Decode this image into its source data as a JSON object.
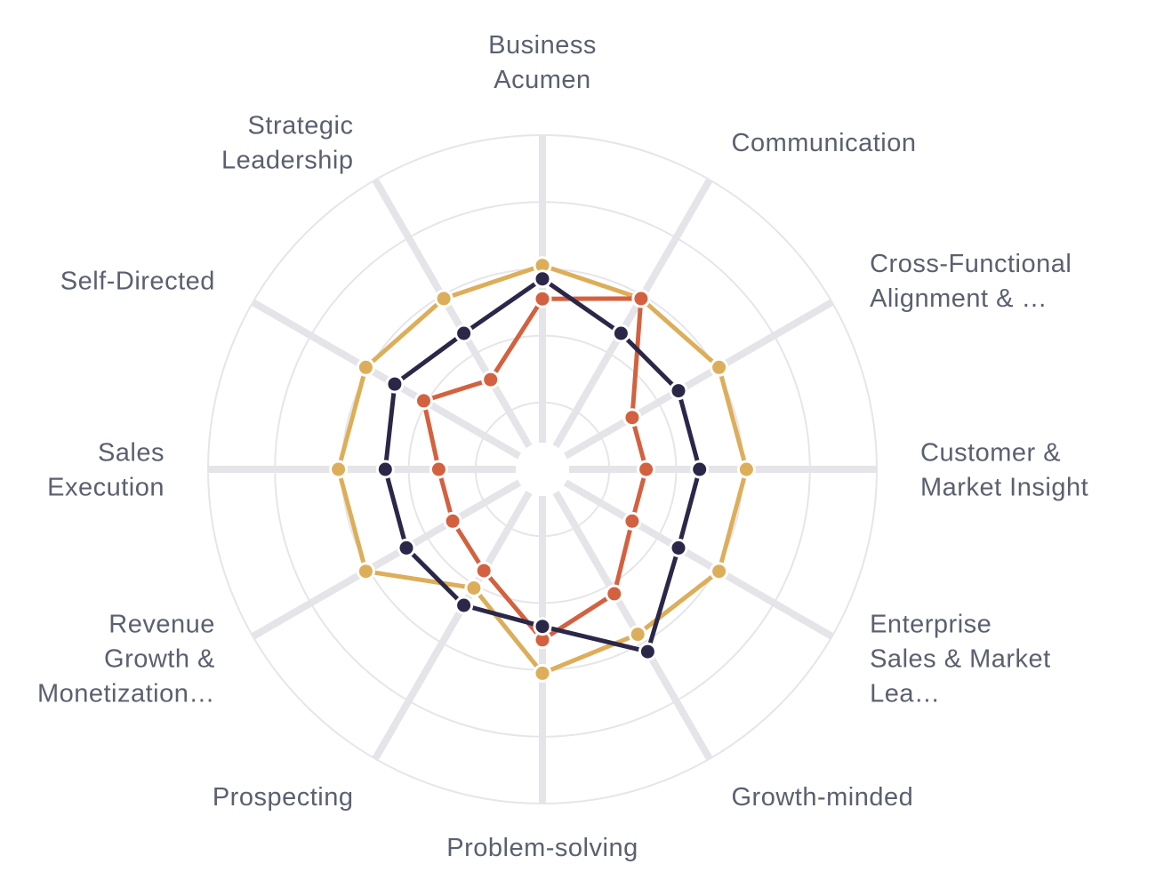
{
  "chart_data": {
    "type": "radar",
    "title": "",
    "categories": [
      [
        "Business",
        "Acumen"
      ],
      [
        "Communication"
      ],
      [
        "Cross-Functional",
        "Alignment & …"
      ],
      [
        "Customer &",
        "Market Insight"
      ],
      [
        "Enterprise",
        "Sales & Market",
        "Lea…"
      ],
      [
        "Growth-minded"
      ],
      [
        "Problem-solving"
      ],
      [
        "Prospecting"
      ],
      [
        "Revenue",
        "Growth &",
        "Monetization…"
      ],
      [
        "Sales",
        "Execution"
      ],
      [
        "Self-Directed"
      ],
      [
        "Strategic",
        "Leadership"
      ]
    ],
    "rlim": [
      0,
      5
    ],
    "rings": 5,
    "series": [
      {
        "color": "#ddae5a",
        "values": [
          3.05,
          2.95,
          3.05,
          3.05,
          3.05,
          2.85,
          3.05,
          2.05,
          3.05,
          3.05,
          3.05,
          2.95
        ]
      },
      {
        "color": "#d3613f",
        "values": [
          2.55,
          2.95,
          1.55,
          1.55,
          1.55,
          2.15,
          2.55,
          1.75,
          1.55,
          1.55,
          2.05,
          1.55
        ]
      },
      {
        "color": "#2b2748",
        "values": [
          2.85,
          2.35,
          2.35,
          2.35,
          2.35,
          3.15,
          2.35,
          2.35,
          2.35,
          2.35,
          2.55,
          2.35
        ]
      }
    ]
  }
}
